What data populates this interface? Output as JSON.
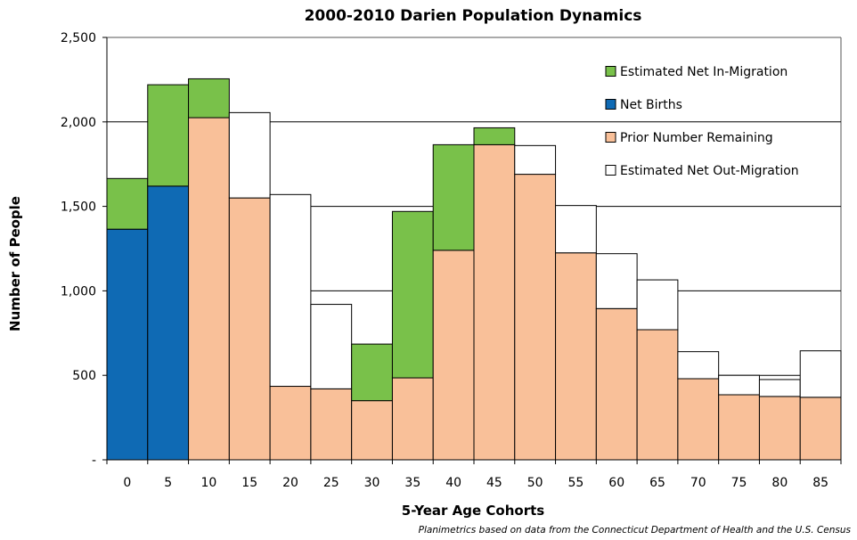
{
  "chart_data": {
    "type": "bar",
    "stacked": true,
    "title": "2000-2010 Darien Population Dynamics",
    "xlabel": "5-Year Age Cohorts",
    "ylabel": "Number of People",
    "source_note": "Planimetrics based on data from the Connecticut Department of Health and the U.S. Census",
    "categories": [
      "0",
      "5",
      "10",
      "15",
      "20",
      "25",
      "30",
      "35",
      "40",
      "45",
      "50",
      "55",
      "60",
      "65",
      "70",
      "75",
      "80",
      "85"
    ],
    "ylim": [
      0,
      2500
    ],
    "yticks": [
      0,
      500,
      1000,
      1500,
      2000,
      2500
    ],
    "ytick_labels": [
      "-",
      "500",
      "1,000",
      "1,500",
      "2,000",
      "2,500"
    ],
    "grid": true,
    "legend_position": "top-right",
    "series": [
      {
        "name": "Estimated Net In-Migration",
        "color": "#79c14a",
        "values": [
          300,
          600,
          230,
          0,
          0,
          0,
          335,
          985,
          625,
          100,
          0,
          0,
          0,
          0,
          0,
          0,
          0,
          0
        ]
      },
      {
        "name": "Net Births",
        "color": "#0f6ab4",
        "values": [
          1365,
          1620,
          0,
          0,
          0,
          0,
          0,
          0,
          0,
          0,
          0,
          0,
          0,
          0,
          0,
          0,
          0,
          0
        ]
      },
      {
        "name": "Prior Number Remaining",
        "color": "#f9c099",
        "values": [
          0,
          0,
          2025,
          1550,
          435,
          420,
          350,
          485,
          1240,
          1865,
          1690,
          1225,
          895,
          770,
          480,
          385,
          375,
          370
        ]
      },
      {
        "name": "Estimated Net Out-Migration",
        "color": "#ffffff",
        "values": [
          0,
          0,
          0,
          505,
          1135,
          500,
          0,
          0,
          0,
          0,
          170,
          280,
          325,
          295,
          160,
          115,
          100,
          275
        ]
      }
    ]
  }
}
